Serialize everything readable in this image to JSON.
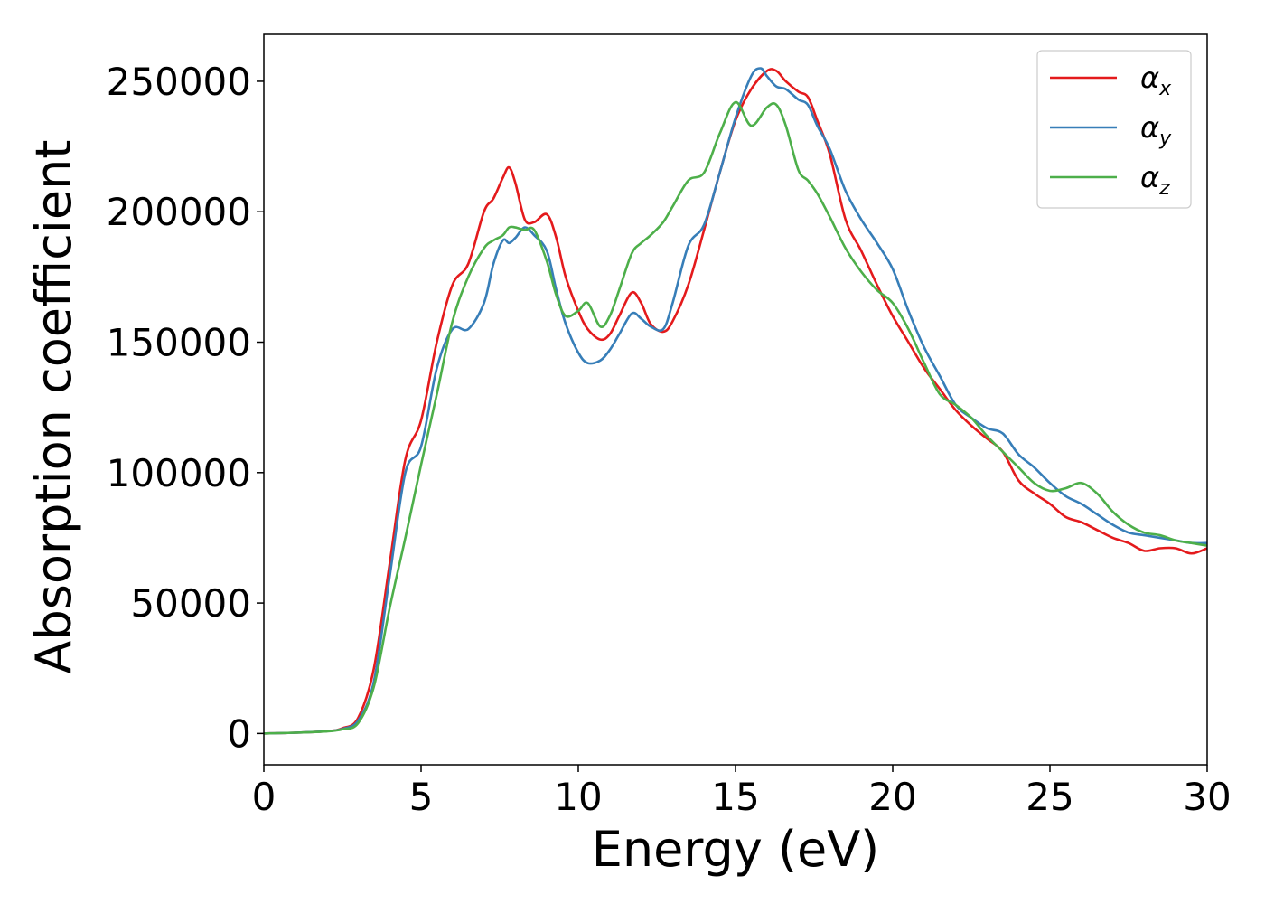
{
  "chart_data": {
    "type": "line",
    "title": "",
    "xlabel": "Energy (eV)",
    "ylabel": "Absorption coefficient",
    "xlim": [
      0,
      30
    ],
    "ylim": [
      -12000,
      268000
    ],
    "xticks": [
      0,
      5,
      10,
      15,
      20,
      25,
      30
    ],
    "yticks": [
      0,
      50000,
      100000,
      150000,
      200000,
      250000
    ],
    "grid": false,
    "legend_position": "top-right",
    "series": [
      {
        "name": "α_x",
        "label_base": "α",
        "label_sub": "x",
        "color": "#e41a1c",
        "x": [
          0,
          1,
          2,
          2.5,
          3,
          3.5,
          4,
          4.5,
          5,
          5.5,
          6,
          6.5,
          7,
          7.3,
          7.6,
          7.8,
          8,
          8.3,
          8.6,
          9,
          9.3,
          9.6,
          10,
          10.3,
          10.7,
          11,
          11.3,
          11.7,
          12,
          12.3,
          12.7,
          13,
          13.5,
          14,
          14.5,
          15,
          15.5,
          16,
          16.3,
          16.6,
          17,
          17.3,
          17.6,
          18,
          18.5,
          19,
          19.5,
          20,
          20.5,
          21,
          21.5,
          22,
          22.5,
          23,
          23.5,
          24,
          24.5,
          25,
          25.5,
          26,
          26.5,
          27,
          27.5,
          28,
          28.5,
          29,
          29.5,
          30
        ],
        "y": [
          0,
          300,
          900,
          2000,
          6000,
          25000,
          65000,
          105000,
          120000,
          150000,
          172000,
          180000,
          200000,
          205000,
          213000,
          217000,
          211000,
          197000,
          196000,
          199000,
          190000,
          175000,
          162000,
          155000,
          151000,
          153000,
          160000,
          169000,
          165000,
          157000,
          154000,
          158000,
          172000,
          193000,
          215000,
          235000,
          247000,
          254000,
          254000,
          250000,
          246000,
          244000,
          235000,
          222000,
          197000,
          185000,
          172000,
          160000,
          150000,
          140000,
          132000,
          124000,
          118000,
          113000,
          108000,
          97000,
          92000,
          88000,
          83000,
          81000,
          78000,
          75000,
          73000,
          70000,
          71000,
          71000,
          69000,
          71000
        ]
      },
      {
        "name": "α_y",
        "label_base": "α",
        "label_sub": "y",
        "color": "#377eb8",
        "x": [
          0,
          1,
          2,
          2.5,
          3,
          3.5,
          4,
          4.5,
          5,
          5.5,
          6,
          6.5,
          7,
          7.3,
          7.6,
          7.8,
          8,
          8.3,
          8.6,
          9,
          9.3,
          9.6,
          10,
          10.3,
          10.7,
          11,
          11.3,
          11.7,
          12,
          12.3,
          12.7,
          13,
          13.5,
          14,
          14.5,
          15,
          15.5,
          15.8,
          16,
          16.3,
          16.6,
          17,
          17.3,
          17.6,
          18,
          18.5,
          19,
          19.5,
          20,
          20.5,
          21,
          21.5,
          22,
          22.5,
          23,
          23.5,
          24,
          24.5,
          25,
          25.5,
          26,
          26.5,
          27,
          27.5,
          28,
          28.5,
          29,
          29.5,
          30
        ],
        "y": [
          0,
          300,
          900,
          1800,
          5000,
          20000,
          60000,
          100000,
          110000,
          140000,
          155000,
          155000,
          165000,
          180000,
          189000,
          188000,
          190000,
          194000,
          191000,
          185000,
          170000,
          157000,
          146000,
          142000,
          143000,
          147000,
          153000,
          161000,
          159000,
          156000,
          155000,
          165000,
          187000,
          195000,
          215000,
          236000,
          252000,
          255000,
          252000,
          248000,
          247000,
          243000,
          241000,
          233000,
          224000,
          208000,
          197000,
          188000,
          178000,
          162000,
          148000,
          137000,
          126000,
          121000,
          117000,
          115000,
          107000,
          102000,
          96000,
          91000,
          88000,
          84000,
          80000,
          77000,
          76000,
          75000,
          74000,
          73000,
          73000
        ]
      },
      {
        "name": "α_z",
        "label_base": "α",
        "label_sub": "z",
        "color": "#4daf4a",
        "x": [
          0,
          1,
          2,
          2.5,
          3,
          3.5,
          4,
          4.5,
          5,
          5.5,
          6,
          6.5,
          7,
          7.3,
          7.6,
          7.8,
          8,
          8.3,
          8.6,
          9,
          9.3,
          9.6,
          10,
          10.3,
          10.7,
          11,
          11.3,
          11.7,
          12,
          12.3,
          12.7,
          13,
          13.5,
          14,
          14.5,
          15,
          15.5,
          16,
          16.3,
          16.6,
          17,
          17.3,
          17.6,
          18,
          18.5,
          19,
          19.5,
          20,
          20.5,
          21,
          21.5,
          22,
          22.5,
          23,
          23.5,
          24,
          24.5,
          25,
          25.5,
          26,
          26.5,
          27,
          27.5,
          28,
          28.5,
          29,
          29.5,
          30
        ],
        "y": [
          0,
          300,
          800,
          1600,
          4000,
          18000,
          48000,
          75000,
          103000,
          130000,
          158000,
          175000,
          186000,
          189000,
          191000,
          194000,
          194000,
          193000,
          193000,
          181000,
          168000,
          160000,
          162000,
          165000,
          156000,
          160000,
          170000,
          184000,
          188000,
          191000,
          196000,
          202000,
          212000,
          215000,
          230000,
          242000,
          233000,
          240000,
          241000,
          233000,
          216000,
          212000,
          207000,
          198000,
          186000,
          177000,
          170000,
          165000,
          155000,
          142000,
          130000,
          126000,
          121000,
          114000,
          108000,
          102000,
          96000,
          93000,
          94000,
          96000,
          92000,
          85000,
          80000,
          77000,
          76000,
          74000,
          73000,
          72000
        ]
      }
    ]
  }
}
